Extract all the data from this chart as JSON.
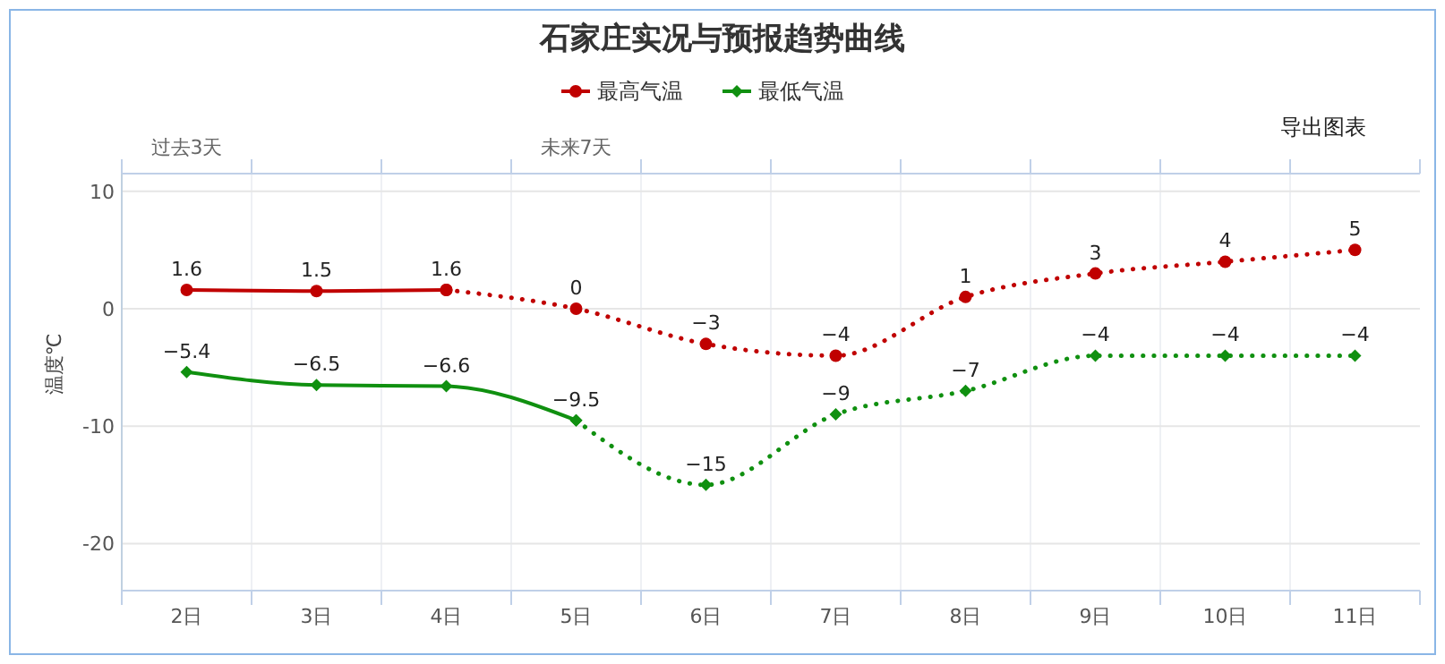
{
  "chart_data": {
    "type": "line",
    "title": "石家庄实况与预报趋势曲线",
    "ylabel": "温度℃",
    "categories": [
      "2日",
      "3日",
      "4日",
      "5日",
      "6日",
      "7日",
      "8日",
      "9日",
      "10日",
      "11日"
    ],
    "ylim": [
      -24,
      11.5
    ],
    "yticks": [
      -20,
      -10,
      0,
      10
    ],
    "grid": true,
    "legend": "top",
    "annotations": [
      "过去3天",
      "未来7天",
      "导出图表"
    ],
    "series": [
      {
        "name": "最高气温",
        "color": "#c00000",
        "line_style": "solid",
        "marker": "circle",
        "values": [
          1.6,
          1.5,
          1.6,
          null,
          null,
          null,
          null,
          null,
          null,
          null
        ],
        "value_labels": [
          "1.6",
          "1.5",
          "1.6",
          null,
          null,
          null,
          null,
          null,
          null,
          null
        ]
      },
      {
        "color": "#c00000",
        "line_style": "dotted",
        "marker": "circle",
        "values": [
          null,
          null,
          1.6,
          0,
          -3,
          -4,
          1,
          3,
          4,
          5
        ],
        "value_labels": [
          null,
          null,
          null,
          "0",
          "−3",
          "−4",
          "1",
          "3",
          "4",
          "5"
        ]
      },
      {
        "name": "最低气温",
        "color": "#109010",
        "line_style": "solid",
        "marker": "diamond",
        "values": [
          -5.4,
          -6.5,
          -6.6,
          -9.5,
          null,
          null,
          null,
          null,
          null,
          null
        ],
        "value_labels": [
          "−5.4",
          "−6.5",
          "−6.6",
          "−9.5",
          null,
          null,
          null,
          null,
          null,
          null
        ]
      },
      {
        "color": "#109010",
        "line_style": "dotted",
        "marker": "diamond",
        "values": [
          null,
          null,
          null,
          -9.5,
          -15,
          -9,
          -7,
          -4,
          -4,
          -4
        ],
        "value_labels": [
          null,
          null,
          null,
          null,
          "−15",
          "−9",
          "−7",
          "−4",
          "−4",
          "−4"
        ]
      }
    ]
  }
}
